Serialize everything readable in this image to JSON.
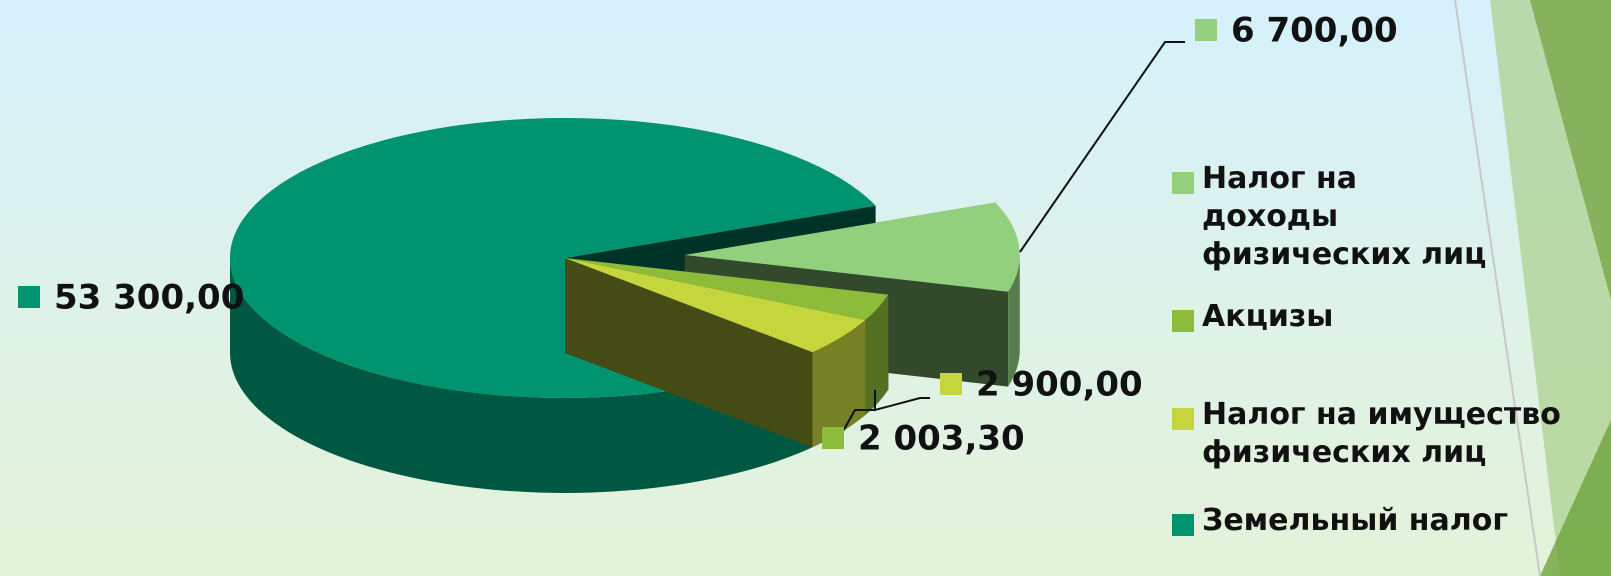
{
  "chart_data": {
    "type": "pie",
    "categories": [
      "Налог на доходы физических лиц",
      "Акцизы",
      "Налог на имущество физических лиц",
      "Земельный налог"
    ],
    "values": [
      6700,
      2003.3,
      2900,
      53300
    ],
    "value_labels": [
      "6 700,00",
      "2 003,30",
      "2 900,00",
      "53 300,00"
    ],
    "colors": [
      "#92d07e",
      "#8cbc3a",
      "#c5d53c",
      "#00936f"
    ],
    "legend": "right"
  }
}
